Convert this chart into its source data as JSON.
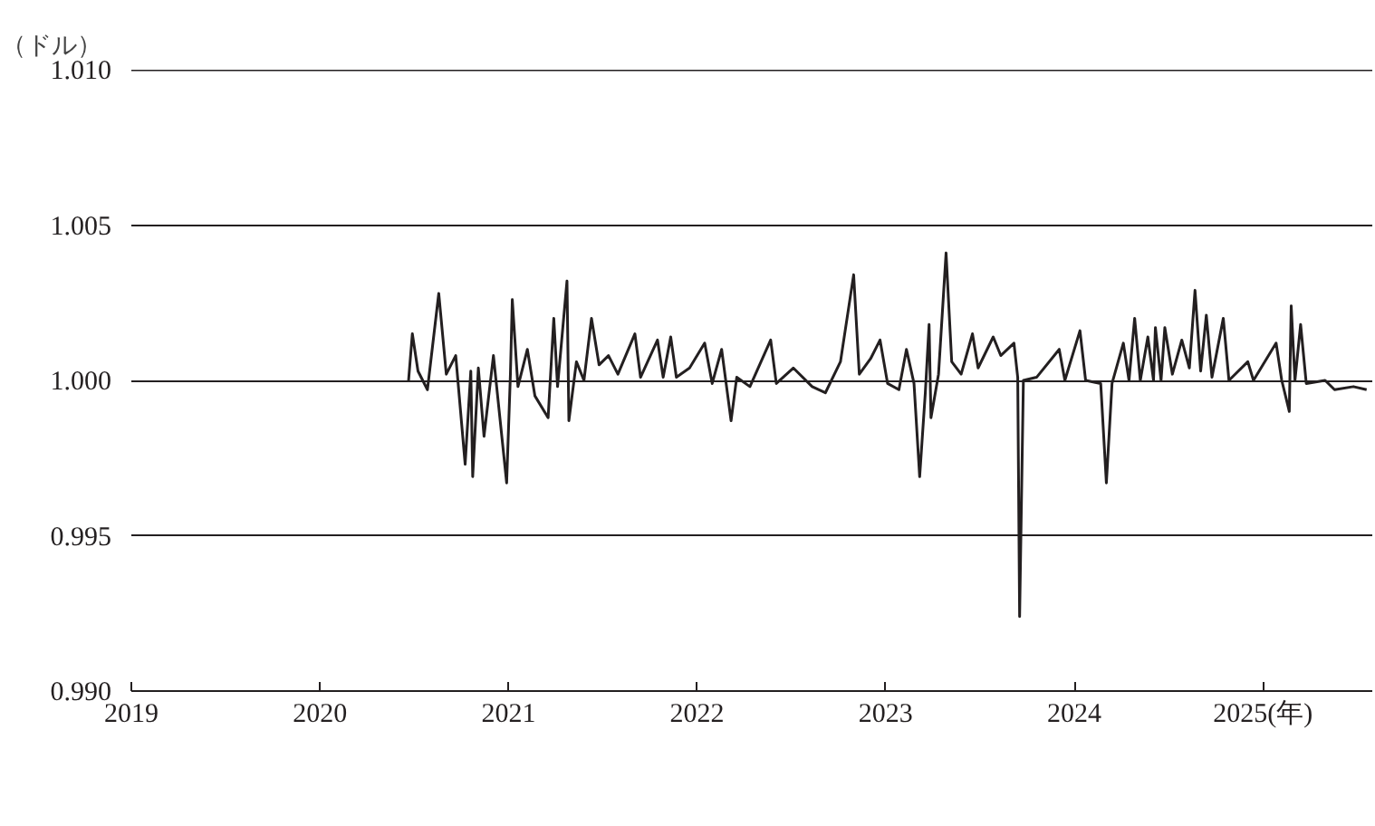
{
  "chart_data": {
    "type": "line",
    "ylabel": "（ドル）",
    "color": "#231f20",
    "x": [
      2020.47,
      2020.49,
      2020.52,
      2020.57,
      2020.63,
      2020.67,
      2020.72,
      2020.77,
      2020.8,
      2020.81,
      2020.84,
      2020.87,
      2020.92,
      2020.99,
      2021.01,
      2021.02,
      2021.05,
      2021.1,
      2021.14,
      2021.21,
      2021.24,
      2021.26,
      2021.31,
      2021.32,
      2021.36,
      2021.4,
      2021.44,
      2021.48,
      2021.53,
      2021.58,
      2021.67,
      2021.7,
      2021.79,
      2021.82,
      2021.86,
      2021.89,
      2021.96,
      2022.04,
      2022.08,
      2022.13,
      2022.18,
      2022.21,
      2022.28,
      2022.39,
      2022.42,
      2022.51,
      2022.61,
      2022.68,
      2022.76,
      2022.83,
      2022.86,
      2022.92,
      2022.97,
      2023.01,
      2023.07,
      2023.11,
      2023.15,
      2023.18,
      2023.21,
      2023.23,
      2023.24,
      2023.28,
      2023.32,
      2023.35,
      2023.4,
      2023.46,
      2023.49,
      2023.57,
      2023.61,
      2023.68,
      2023.7,
      2023.71,
      2023.73,
      2023.8,
      2023.92,
      2023.95,
      2024.03,
      2024.06,
      2024.14,
      2024.17,
      2024.2,
      2024.26,
      2024.29,
      2024.32,
      2024.35,
      2024.39,
      2024.42,
      2024.43,
      2024.46,
      2024.48,
      2024.52,
      2024.57,
      2024.61,
      2024.64,
      2024.67,
      2024.7,
      2024.73,
      2024.79,
      2024.82,
      2024.92,
      2024.95,
      2025.07,
      2025.1,
      2025.14,
      2025.15,
      2025.17,
      2025.2,
      2025.23,
      2025.33,
      2025.38,
      2025.48,
      2025.55
    ],
    "values": [
      1.0,
      1.0015,
      1.0003,
      0.9997,
      1.0028,
      1.0002,
      1.0008,
      0.9973,
      1.0003,
      0.9969,
      1.0004,
      0.9982,
      1.0008,
      0.9967,
      1.0002,
      1.0026,
      0.9998,
      1.001,
      0.9995,
      0.9988,
      1.002,
      0.9998,
      1.0032,
      0.9987,
      1.0006,
      1.0,
      1.002,
      1.0005,
      1.0008,
      1.0002,
      1.0015,
      1.0001,
      1.0013,
      1.0001,
      1.0014,
      1.0001,
      1.0004,
      1.0012,
      0.9999,
      1.001,
      0.9987,
      1.0001,
      0.9998,
      1.0013,
      0.9999,
      1.0004,
      0.9998,
      0.9996,
      1.0006,
      1.0034,
      1.0002,
      1.0007,
      1.0013,
      0.9999,
      0.9997,
      1.001,
      0.9999,
      0.9969,
      0.9996,
      1.0018,
      0.9988,
      1.0002,
      1.0041,
      1.0006,
      1.0002,
      1.0015,
      1.0004,
      1.0014,
      1.0008,
      1.0012,
      1.0001,
      0.9924,
      1.0,
      1.0001,
      1.001,
      1.0,
      1.0016,
      1.0,
      0.9999,
      0.9967,
      0.9999,
      1.0012,
      1.0,
      1.002,
      1.0,
      1.0014,
      1.0,
      1.0017,
      1.0,
      1.0017,
      1.0002,
      1.0013,
      1.0004,
      1.0029,
      1.0003,
      1.0021,
      1.0001,
      1.002,
      1.0,
      1.0006,
      1.0,
      1.0012,
      1.0,
      0.999,
      1.0024,
      1.0,
      1.0018,
      0.9999,
      1.0,
      0.9997,
      0.9998,
      0.9997
    ],
    "xlim": [
      2019,
      2025.58
    ],
    "ylim": [
      0.99,
      1.01
    ],
    "xticks": [
      2019,
      2020,
      2021,
      2022,
      2023,
      2024,
      {
        "value": 2025,
        "label": "2025(年)"
      }
    ],
    "yticks": [
      {
        "value": 0.99,
        "label": "0.990"
      },
      {
        "value": 0.995,
        "label": "0.995"
      },
      {
        "value": 1.0,
        "label": "1.000"
      },
      {
        "value": 1.005,
        "label": "1.005"
      },
      {
        "value": 1.01,
        "label": "1.010"
      }
    ],
    "grid": "y",
    "line_style": "solid"
  }
}
